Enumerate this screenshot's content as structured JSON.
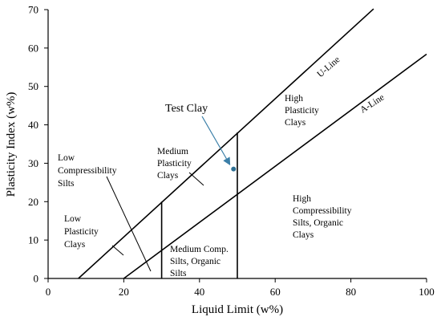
{
  "chart_data": {
    "type": "line",
    "title": "",
    "xlabel": "Liquid Limit (w%)",
    "ylabel": "Plasticity Index (w%)",
    "xlim": [
      0,
      100
    ],
    "ylim": [
      0,
      70
    ],
    "xticks": [
      0,
      20,
      40,
      60,
      80,
      100
    ],
    "yticks": [
      0,
      10,
      20,
      30,
      40,
      50,
      60,
      70
    ],
    "grid": false,
    "series": [
      {
        "name": "U-Line",
        "x": [
          8,
          86
        ],
        "y": [
          0,
          70.2
        ]
      },
      {
        "name": "A-Line",
        "x": [
          20,
          100
        ],
        "y": [
          0,
          58.4
        ]
      }
    ],
    "boundaries": [
      {
        "x": [
          30,
          30
        ],
        "y": [
          0,
          20
        ]
      },
      {
        "x": [
          50,
          50
        ],
        "y": [
          0,
          38
        ]
      }
    ],
    "point": {
      "label": "Test Clay",
      "x": 49,
      "y": 28.5
    },
    "regions": [
      {
        "lines": [
          "Low",
          "Compressibility",
          "Silts"
        ]
      },
      {
        "lines": [
          "Low",
          "Plasticity",
          "Clays"
        ]
      },
      {
        "lines": [
          "Medium",
          "Plasticity",
          "Clays"
        ]
      },
      {
        "lines": [
          "High",
          "Plasticity",
          "Clays"
        ]
      },
      {
        "lines": [
          "High",
          "Compressibility",
          "Silts, Organic",
          "Clays"
        ]
      },
      {
        "lines": [
          "Medium Comp.",
          "Silts, Organic",
          "Silts"
        ]
      }
    ],
    "colors": {
      "line": "#000000",
      "arrow": "#3b7fa8",
      "point": "#2d6f93"
    }
  }
}
